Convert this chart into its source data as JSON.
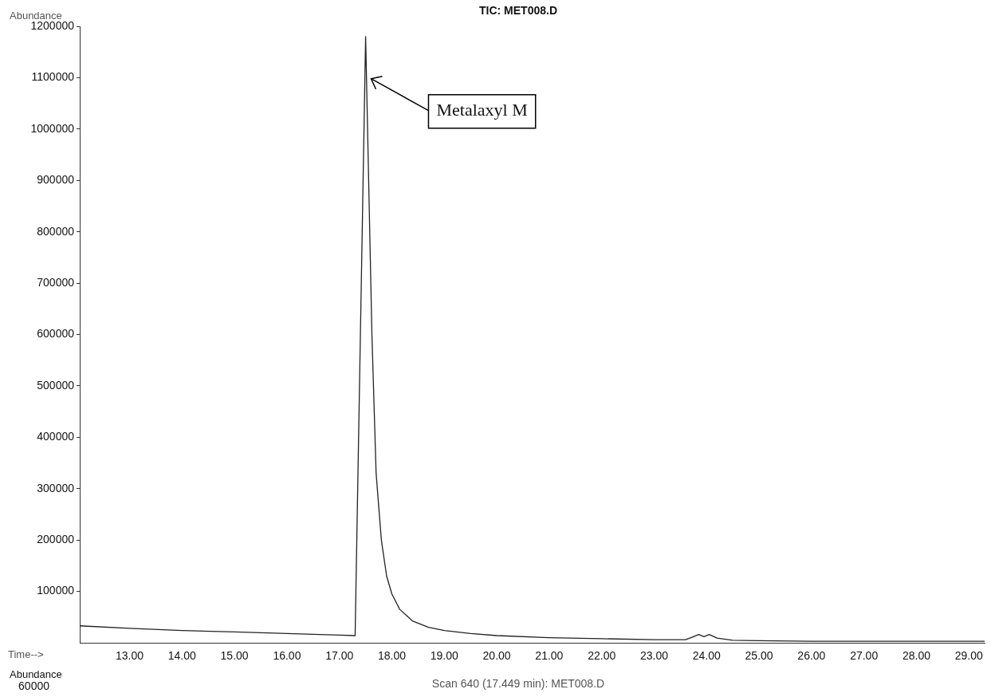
{
  "chart_data": {
    "type": "line",
    "title": "TIC: MET008.D",
    "xlabel": "Time-->",
    "ylabel": "Abundance",
    "x": [
      12.05,
      13,
      14,
      15,
      16,
      17,
      17.3,
      17.5,
      17.62,
      17.7,
      17.8,
      17.9,
      18.0,
      18.15,
      18.4,
      18.7,
      19.0,
      19.5,
      20.0,
      21.0,
      22.0,
      23.0,
      23.6,
      23.75,
      23.85,
      23.95,
      24.05,
      24.2,
      24.5,
      25,
      26,
      27,
      28,
      29,
      29.3
    ],
    "series": [
      {
        "color": "#222222",
        "values": [
          33000,
          28000,
          24000,
          21000,
          18000,
          15000,
          14000,
          1180000,
          600000,
          330000,
          200000,
          130000,
          95000,
          65000,
          42000,
          30000,
          24000,
          18000,
          14000,
          10000,
          8000,
          6000,
          6000,
          12000,
          16000,
          12000,
          16000,
          9000,
          5000,
          4000,
          3000,
          3000,
          3000,
          3000,
          3000
        ]
      }
    ],
    "xlim": [
      12.05,
      29.3
    ],
    "xticks": [
      {
        "value": 13,
        "label": "13.00"
      },
      {
        "value": 14,
        "label": "14.00"
      },
      {
        "value": 15,
        "label": "15.00"
      },
      {
        "value": 16,
        "label": "16.00"
      },
      {
        "value": 17,
        "label": "17.00"
      },
      {
        "value": 18,
        "label": "18.00"
      },
      {
        "value": 19,
        "label": "19.00"
      },
      {
        "value": 20,
        "label": "20.00"
      },
      {
        "value": 21,
        "label": "21.00"
      },
      {
        "value": 22,
        "label": "22.00"
      },
      {
        "value": 23,
        "label": "23.00"
      },
      {
        "value": 24,
        "label": "24.00"
      },
      {
        "value": 25,
        "label": "25.00"
      },
      {
        "value": 26,
        "label": "26.00"
      },
      {
        "value": 27,
        "label": "27.00"
      },
      {
        "value": 28,
        "label": "28.00"
      },
      {
        "value": 29,
        "label": "29.00"
      }
    ],
    "ylim": [
      0,
      1200000
    ],
    "yticks": [
      100000,
      200000,
      300000,
      400000,
      500000,
      600000,
      700000,
      800000,
      900000,
      1000000,
      1100000,
      1200000
    ],
    "marker": "none",
    "line_style": "solid",
    "grid": false,
    "legend": false,
    "annotations": [
      "Metalaxyl M",
      "Scan 640 (17.449 min): MET008.D",
      "Abundance",
      "60000"
    ]
  }
}
